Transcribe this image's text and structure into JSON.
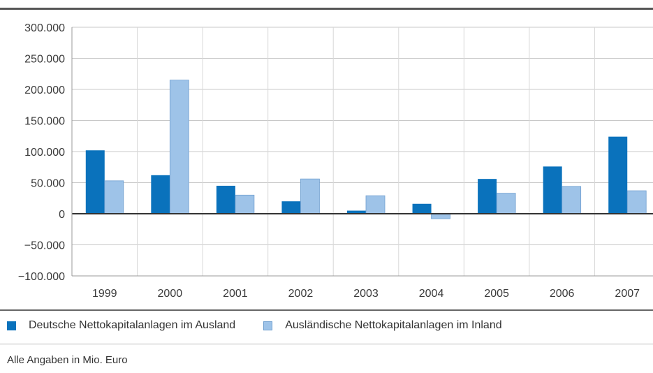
{
  "chart_data": {
    "type": "bar",
    "categories": [
      "1999",
      "2000",
      "2001",
      "2002",
      "2003",
      "2004",
      "2005",
      "2006",
      "2007"
    ],
    "series": [
      {
        "name": "Deutsche Nettokapitalanlagen im Ausland",
        "color": "#0a72bc",
        "values": [
          102000,
          62000,
          45000,
          20000,
          5000,
          16000,
          56000,
          76000,
          124000
        ]
      },
      {
        "name": "Ausländische Nettokapitalanlagen im Inland",
        "color": "#9ec3e8",
        "values": [
          53000,
          215000,
          30000,
          56000,
          29000,
          -8000,
          33000,
          44000,
          37000
        ]
      }
    ],
    "yticks": [
      300000,
      250000,
      200000,
      150000,
      100000,
      50000,
      0,
      -50000,
      -100000
    ],
    "ytick_labels": [
      "300.000",
      "250.000",
      "200.000",
      "150.000",
      "100.000",
      "50.000",
      "0",
      "−50.000",
      "−100.000"
    ],
    "ylim": [
      -100000,
      300000
    ],
    "grid": true,
    "legend_position": "bottom"
  },
  "footnote": "Alle Angaben in Mio. Euro"
}
